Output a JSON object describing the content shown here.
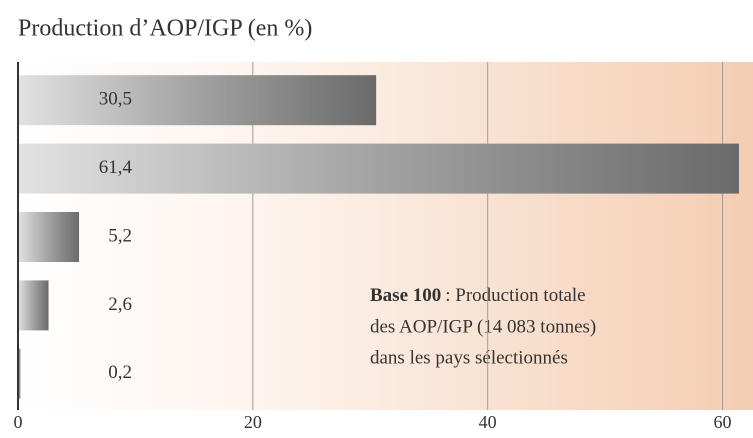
{
  "chart_data": {
    "type": "hbar",
    "title": "Production d’AOP/IGP (en %)",
    "categories": [
      null,
      null,
      null,
      null,
      null
    ],
    "values": [
      30.5,
      61.4,
      5.2,
      2.6,
      0.2
    ],
    "value_labels": [
      "30,5",
      "61,4",
      "5,2",
      "2,6",
      "0,2"
    ],
    "color": "#6a6a6a",
    "xlim": [
      0,
      62
    ],
    "xticks": [
      0,
      20,
      40,
      60
    ],
    "grid": true,
    "annotation": {
      "bold": "Base 100",
      "lines": [
        ": Production totale",
        "des AOP/IGP (14 083 tonnes)",
        "dans les pays sélectionnés"
      ]
    }
  }
}
